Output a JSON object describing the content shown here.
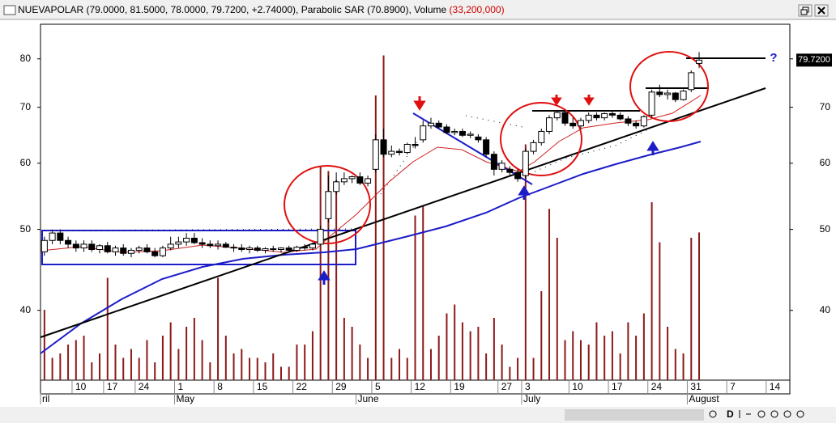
{
  "header": {
    "symbol": "NUEVAPOLAR",
    "quote": "(79.0000, 81.5000, 78.0000, 79.7200, +2.74000),",
    "sar": "Parabolic SAR",
    "sar_value": "(70.8900),",
    "volume": "Volume",
    "volume_value": "(33,200,000)"
  },
  "toolbar": [
    "D"
  ],
  "chart_data": {
    "type": "candlestick",
    "log_scale": true,
    "ylim": [
      33,
      88
    ],
    "yticks": [
      40,
      50,
      60,
      70,
      80
    ],
    "y2lim": [
      0,
      80000000
    ],
    "last_price": {
      "value": 79.72,
      "label": "79.7200"
    },
    "annotations": [
      "?"
    ],
    "up_color": "#ffffff",
    "down_color": "#000000",
    "volume_color": "#8b1a1a",
    "categories": [
      null,
      null,
      null,
      null,
      "10",
      null,
      null,
      null,
      "17",
      null,
      null,
      null,
      "24",
      null,
      null,
      null,
      null,
      "1",
      null,
      null,
      null,
      null,
      "8",
      null,
      null,
      null,
      null,
      "15",
      null,
      null,
      null,
      null,
      "22",
      null,
      null,
      null,
      null,
      "29",
      null,
      null,
      null,
      null,
      "5",
      null,
      null,
      null,
      null,
      "12",
      null,
      null,
      null,
      null,
      "19",
      null,
      null,
      null,
      null,
      null,
      "27",
      null,
      null,
      "3",
      null,
      null,
      null,
      null,
      null,
      "10",
      null,
      null,
      null,
      null,
      "17",
      null,
      null,
      null,
      null,
      "24",
      null,
      null,
      null,
      null,
      "31",
      null,
      null,
      null,
      null,
      "7",
      null,
      null,
      null,
      null,
      "14",
      null,
      null
    ],
    "months": [
      "ril",
      null,
      null,
      null,
      null,
      null,
      null,
      null,
      null,
      null,
      null,
      null,
      null,
      null,
      null,
      null,
      null,
      "May",
      null,
      null,
      null,
      null,
      null,
      null,
      null,
      null,
      null,
      null,
      null,
      null,
      null,
      null,
      null,
      null,
      null,
      null,
      null,
      null,
      null,
      null,
      "June",
      null,
      null,
      null,
      null,
      null,
      null,
      null,
      null,
      null,
      null,
      null,
      null,
      null,
      null,
      null,
      null,
      null,
      null,
      null,
      null,
      "July",
      null,
      null,
      null,
      null,
      null,
      null,
      null,
      null,
      null,
      null,
      null,
      null,
      null,
      null,
      null,
      null,
      null,
      null,
      null,
      null,
      "August",
      null,
      null,
      null,
      null,
      null,
      null,
      null,
      null,
      null,
      null,
      null,
      null
    ],
    "candles": [
      [
        47,
        49,
        46.5,
        48.5
      ],
      [
        48.5,
        50,
        48,
        49.5
      ],
      [
        49.5,
        50,
        48,
        48.5
      ],
      [
        48.5,
        49,
        47.5,
        48
      ],
      [
        48,
        48.5,
        47,
        47.5
      ],
      [
        47.5,
        48.5,
        47,
        48
      ],
      [
        48,
        48.5,
        47,
        47.3
      ],
      [
        47.3,
        48,
        46.8,
        47.8
      ],
      [
        47.8,
        48.3,
        46.8,
        47
      ],
      [
        47,
        47.8,
        46.5,
        47.5
      ],
      [
        47.5,
        48,
        46.5,
        46.8
      ],
      [
        46.8,
        47.5,
        46.3,
        47.2
      ],
      [
        47.2,
        47.8,
        46.8,
        47.5
      ],
      [
        47.5,
        48,
        46.8,
        47
      ],
      [
        47,
        47.5,
        46.3,
        46.5
      ],
      [
        46.5,
        47.8,
        46.3,
        47.5
      ],
      [
        47.5,
        49,
        47.2,
        48
      ],
      [
        48,
        49,
        47.5,
        48.3
      ],
      [
        48.3,
        49.5,
        47.8,
        48.8
      ],
      [
        48.8,
        49.5,
        48,
        48.2
      ],
      [
        48.2,
        48.8,
        47.5,
        48
      ],
      [
        48,
        48.5,
        47.5,
        47.8
      ],
      [
        47.8,
        48.5,
        47.3,
        48
      ],
      [
        48,
        48.3,
        47.5,
        47.6
      ],
      [
        47.6,
        48,
        47,
        47.5
      ],
      [
        47.5,
        48,
        47,
        47.3
      ],
      [
        47.3,
        47.8,
        46.8,
        47.5
      ],
      [
        47.5,
        47.8,
        47,
        47.2
      ],
      [
        47.2,
        47.6,
        46.8,
        47.4
      ],
      [
        47.4,
        47.8,
        47,
        47.3
      ],
      [
        47.3,
        47.6,
        46.9,
        47.5
      ],
      [
        47.5,
        47.8,
        47,
        47.2
      ],
      [
        47.2,
        47.8,
        47,
        47.6
      ],
      [
        47.6,
        48,
        47.2,
        47.5
      ],
      [
        47.5,
        48.2,
        47.2,
        48
      ],
      [
        48,
        50.5,
        47.8,
        50
      ],
      [
        51.5,
        58,
        51,
        55.5
      ],
      [
        55.5,
        58.5,
        55,
        57
      ],
      [
        57,
        58.5,
        56.5,
        57.5
      ],
      [
        57.5,
        58,
        56.8,
        57.8
      ],
      [
        57.8,
        58.5,
        56.5,
        56.8
      ],
      [
        56.8,
        58,
        56.3,
        57.5
      ],
      [
        59,
        65,
        58.5,
        64
      ],
      [
        64,
        66,
        61,
        61.5
      ],
      [
        61.5,
        63,
        61,
        62
      ],
      [
        62,
        62.5,
        61.3,
        61.8
      ],
      [
        61.8,
        63.5,
        61.5,
        63.2
      ],
      [
        63.2,
        64.5,
        62.5,
        63
      ],
      [
        64,
        67.5,
        63.5,
        66.5
      ],
      [
        66.5,
        68,
        66,
        67
      ],
      [
        67,
        67.5,
        66,
        66.3
      ],
      [
        66.3,
        66.8,
        65,
        65.3
      ],
      [
        65.3,
        66,
        64.8,
        65.5
      ],
      [
        65.5,
        66,
        64.5,
        64.8
      ],
      [
        64.8,
        65.5,
        64.3,
        65
      ],
      [
        64.5,
        65,
        63.5,
        64
      ],
      [
        64,
        64.5,
        61,
        61.5
      ],
      [
        61.5,
        62,
        58,
        59
      ],
      [
        59,
        60.5,
        58.5,
        60
      ],
      [
        59,
        59.5,
        58,
        58.5
      ],
      [
        58.5,
        59,
        57,
        57.5
      ],
      [
        58,
        62.5,
        57.5,
        62
      ],
      [
        62,
        64,
        61.5,
        63.5
      ],
      [
        63.5,
        66,
        63,
        65.5
      ],
      [
        65.5,
        68.5,
        65,
        68
      ],
      [
        68,
        69.5,
        67.5,
        69
      ],
      [
        69,
        69.5,
        66.5,
        67
      ],
      [
        67,
        68,
        66,
        66.5
      ],
      [
        66.5,
        68,
        66,
        67.5
      ],
      [
        67.5,
        69,
        67,
        68.5
      ],
      [
        68.5,
        69,
        67.5,
        68
      ],
      [
        68,
        69,
        67.5,
        68.8
      ],
      [
        68.8,
        69.3,
        68,
        68.5
      ],
      [
        68.5,
        69,
        67.5,
        67.8
      ],
      [
        67.8,
        68.3,
        66.5,
        67
      ],
      [
        67,
        67.5,
        66,
        66.5
      ],
      [
        66.5,
        68.5,
        66.2,
        68.2
      ],
      [
        68.5,
        73.5,
        68,
        73
      ],
      [
        73,
        74.5,
        72,
        72.5
      ],
      [
        72.5,
        73.5,
        71.5,
        72.8
      ],
      [
        72.8,
        73,
        71,
        71.5
      ],
      [
        71.5,
        73.5,
        71.3,
        73.2
      ],
      [
        73.5,
        77.5,
        73,
        77
      ],
      [
        79,
        81.5,
        78,
        79.72
      ],
      null,
      null,
      null,
      null,
      null,
      null,
      null,
      null,
      null,
      null,
      null
    ],
    "volume": [
      15800000,
      5000000,
      6000000,
      8000000,
      9000000,
      10000000,
      4000000,
      6000000,
      23000000,
      8000000,
      5000000,
      7000000,
      5000000,
      9000000,
      4000000,
      10000000,
      13000000,
      7000000,
      12000000,
      14000000,
      9000000,
      4000000,
      23000000,
      10000000,
      6000000,
      7000000,
      5000000,
      5000000,
      4000000,
      6000000,
      3000000,
      3000000,
      8000000,
      8000000,
      11000000,
      48000000,
      47000000,
      45000000,
      14000000,
      12000000,
      8000000,
      5000000,
      64000000,
      73000000,
      5000000,
      7000000,
      5000000,
      37000000,
      39000000,
      7000000,
      10000000,
      15000000,
      17000000,
      13000000,
      11000000,
      12000000,
      6000000,
      14000000,
      8000000,
      3000000,
      5000000,
      53000000,
      5000000,
      20000000,
      38500000,
      32000000,
      9000000,
      11000000,
      9000000,
      8000000,
      13000000,
      10000000,
      11000000,
      6000000,
      13000000,
      10000000,
      15000000,
      40000000,
      31000000,
      12000000,
      7000000,
      6000000,
      32000000,
      33200000,
      null,
      null,
      null,
      null,
      null,
      null,
      null,
      null,
      null,
      null,
      null
    ]
  }
}
